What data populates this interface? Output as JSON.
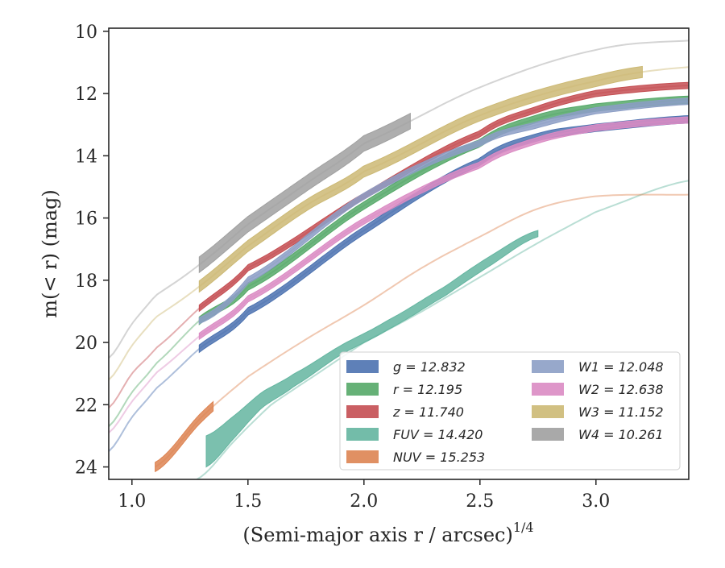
{
  "chart_data": {
    "type": "line",
    "title": "",
    "xlabel": "(Semi-major axis r / arcsec)",
    "xlabel_exponent": "1/4",
    "ylabel": "m(< r) (mag)",
    "xlim": [
      0.9,
      3.4
    ],
    "ylim": [
      24.4,
      9.9
    ],
    "y_inverted": true,
    "grid": false,
    "x_ticks": [
      "1.0",
      "1.5",
      "2.0",
      "2.5",
      "3.0"
    ],
    "y_ticks": [
      "10",
      "12",
      "14",
      "16",
      "18",
      "20",
      "22",
      "24"
    ],
    "legend_position": "lower-right",
    "series": [
      {
        "name": "g",
        "legend": "g = 12.832",
        "color": "#4c72b0",
        "x": [
          0.9,
          1.0,
          1.1,
          1.29,
          1.5,
          2.0,
          2.5,
          2.75,
          3.0,
          3.4
        ],
        "y": [
          23.5,
          22.4,
          21.5,
          20.2,
          19.0,
          16.4,
          14.2,
          13.4,
          13.1,
          12.83
        ],
        "band": [
          1.29,
          3.4
        ],
        "halfwidth": 0.12
      },
      {
        "name": "r",
        "legend": "r = 12.195",
        "color": "#55a868",
        "x": [
          0.9,
          1.0,
          1.1,
          1.29,
          1.5,
          2.0,
          2.5,
          2.75,
          3.0,
          3.4
        ],
        "y": [
          22.7,
          21.6,
          20.7,
          19.3,
          18.2,
          15.6,
          13.6,
          12.8,
          12.45,
          12.2
        ],
        "band": [
          1.29,
          3.4
        ],
        "halfwidth": 0.12
      },
      {
        "name": "z",
        "legend": "z = 11.740",
        "color": "#c44e52",
        "x": [
          0.9,
          1.0,
          1.1,
          1.29,
          1.5,
          2.0,
          2.5,
          2.75,
          3.0,
          3.4
        ],
        "y": [
          22.1,
          21.0,
          20.2,
          18.9,
          17.6,
          15.3,
          13.3,
          12.5,
          12.0,
          11.74
        ],
        "band": [
          1.29,
          3.4
        ],
        "halfwidth": 0.1
      },
      {
        "name": "FUV",
        "legend": "FUV = 14.420",
        "color": "#64b5a0",
        "x": [
          1.28,
          1.45,
          1.6,
          1.8,
          2.0,
          2.25,
          2.5,
          2.75,
          3.0,
          3.4
        ],
        "y": [
          24.4,
          23.1,
          22.0,
          21.0,
          20.0,
          19.0,
          17.9,
          16.8,
          15.8,
          14.8
        ],
        "band_x": [
          1.32,
          1.45,
          1.56,
          1.7,
          1.9,
          2.1,
          2.35,
          2.55,
          2.75
        ],
        "band_upper": [
          23.0,
          22.3,
          21.6,
          21.0,
          20.1,
          19.3,
          18.2,
          17.2,
          16.4
        ],
        "band_lower": [
          24.0,
          23.0,
          22.1,
          21.4,
          20.4,
          19.6,
          18.5,
          17.5,
          16.6
        ]
      },
      {
        "name": "NUV",
        "legend": "NUV = 15.253",
        "color": "#dd8452",
        "x": [
          1.1,
          1.3,
          1.5,
          1.75,
          2.0,
          2.25,
          2.5,
          2.75,
          3.0,
          3.4
        ],
        "y": [
          24.0,
          22.4,
          21.1,
          19.9,
          18.8,
          17.6,
          16.6,
          15.7,
          15.3,
          15.25
        ],
        "band": [
          1.1,
          1.35
        ],
        "halfwidth": 0.15
      },
      {
        "name": "W1",
        "legend": "W1 = 12.048",
        "color": "#8c9ec5",
        "x": [
          1.29,
          1.5,
          2.0,
          2.5,
          2.75,
          3.0,
          3.4
        ],
        "y": [
          19.3,
          18.0,
          15.3,
          13.6,
          13.0,
          12.55,
          12.25
        ],
        "band": [
          1.29,
          3.4
        ],
        "halfwidth": 0.1
      },
      {
        "name": "W2",
        "legend": "W2 = 12.638",
        "color": "#da8bc3",
        "x": [
          0.9,
          1.0,
          1.1,
          1.29,
          1.5,
          2.0,
          2.5,
          2.75,
          3.0,
          3.4
        ],
        "y": [
          22.9,
          21.9,
          21.0,
          19.8,
          18.6,
          16.1,
          14.3,
          13.5,
          13.1,
          12.85
        ],
        "band": [
          1.29,
          3.4
        ],
        "halfwidth": 0.1
      },
      {
        "name": "W3",
        "legend": "W3 = 11.152",
        "color": "#ccb974",
        "x": [
          0.9,
          1.0,
          1.1,
          1.29,
          1.5,
          1.75,
          2.0,
          2.5,
          3.0,
          3.4
        ],
        "y": [
          21.2,
          20.1,
          19.2,
          18.2,
          16.9,
          15.6,
          14.5,
          12.7,
          11.6,
          11.15
        ],
        "band": [
          1.29,
          3.2
        ],
        "halfwidth": 0.18
      },
      {
        "name": "W4",
        "legend": "W4 = 10.261",
        "color": "#a0a0a0",
        "x": [
          0.9,
          1.0,
          1.1,
          1.29,
          1.5,
          1.75,
          2.0,
          2.5,
          3.0,
          3.4
        ],
        "y": [
          20.5,
          19.4,
          18.5,
          17.5,
          16.2,
          14.9,
          13.6,
          11.8,
          10.6,
          10.3
        ],
        "band": [
          1.29,
          2.2
        ],
        "halfwidth": 0.25
      }
    ]
  }
}
